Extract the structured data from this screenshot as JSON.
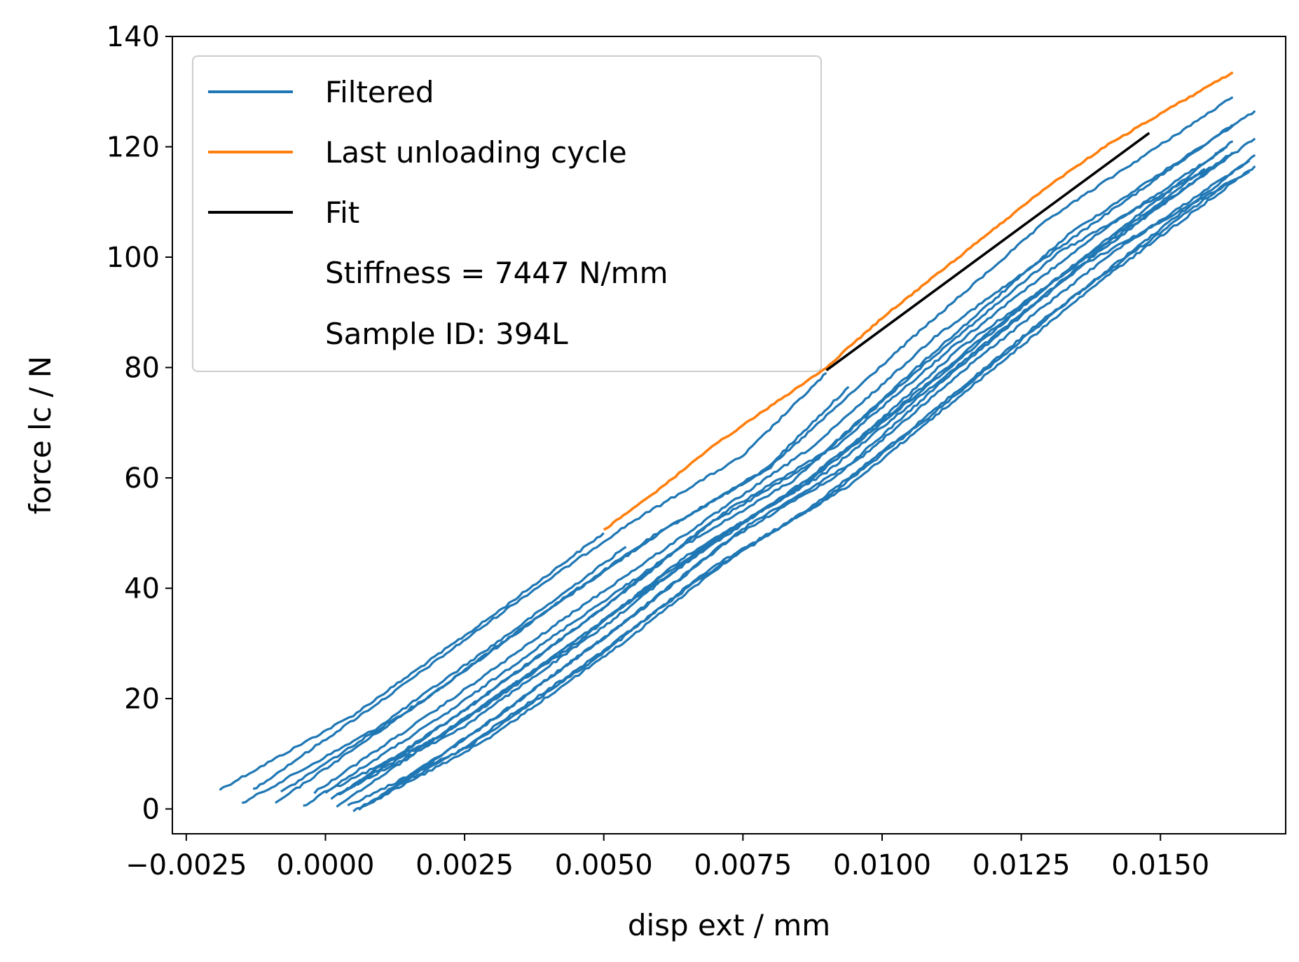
{
  "chart_data": {
    "type": "line",
    "title": "",
    "xlabel": "disp ext / mm",
    "ylabel": "force lc / N",
    "xlim": [
      -0.00275,
      0.01725
    ],
    "ylim": [
      -4.5,
      140
    ],
    "xticks": [
      -0.0025,
      0.0,
      0.0025,
      0.005,
      0.0075,
      0.01,
      0.0125,
      0.015
    ],
    "xtick_labels": [
      "−0.0025",
      "0.0000",
      "0.0025",
      "0.0050",
      "0.0075",
      "0.0100",
      "0.0125",
      "0.0150"
    ],
    "yticks": [
      0,
      20,
      40,
      60,
      80,
      100,
      120,
      140
    ],
    "ytick_labels": [
      "0",
      "20",
      "40",
      "60",
      "80",
      "100",
      "120",
      "140"
    ],
    "grid": false,
    "legend": {
      "placement": "upper-left",
      "entries": [
        {
          "label": "Filtered",
          "color": "#1f77b4",
          "marker": "line"
        },
        {
          "label": "Last unloading cycle",
          "color": "#ff7f0e",
          "marker": "line"
        },
        {
          "label": "Fit",
          "color": "#000000",
          "marker": "line"
        },
        {
          "label": "Stiffness = 7447 N/mm",
          "color": "",
          "marker": "none"
        },
        {
          "label": "Sample ID: 394L",
          "color": "",
          "marker": "none"
        }
      ]
    },
    "series": [
      {
        "name": "Filtered",
        "color": "#1f77b4",
        "curves": [
          [
            [
              -0.0019,
              3.5
            ],
            [
              0.0005,
              17
            ],
            [
              0.003,
              35
            ],
            [
              0.005,
              50
            ]
          ],
          [
            [
              -0.0013,
              3.5
            ],
            [
              0.0012,
              21
            ],
            [
              0.0035,
              38
            ],
            [
              0.0055,
              52
            ],
            [
              0.0075,
              64
            ],
            [
              0.009,
              79
            ]
          ],
          [
            [
              -0.0008,
              3.0
            ],
            [
              0.0018,
              20
            ],
            [
              0.004,
              36
            ],
            [
              0.006,
              50
            ],
            [
              0.008,
              62
            ],
            [
              0.0105,
              85
            ],
            [
              0.013,
              107
            ],
            [
              0.0163,
              129
            ]
          ],
          [
            [
              -0.0002,
              3.0
            ],
            [
              0.002,
              18
            ],
            [
              0.0045,
              36
            ],
            [
              0.0065,
              50
            ],
            [
              0.0088,
              66
            ],
            [
              0.011,
              86
            ],
            [
              0.0135,
              104
            ],
            [
              0.0163,
              124
            ]
          ],
          [
            [
              0.0,
              3.0
            ],
            [
              0.0022,
              14
            ],
            [
              0.0045,
              30
            ],
            [
              0.0065,
              46
            ],
            [
              0.0085,
              58
            ],
            [
              0.0105,
              74
            ],
            [
              0.013,
              95
            ],
            [
              0.0163,
              121
            ]
          ],
          [
            [
              0.0002,
              2.5
            ],
            [
              0.0025,
              15
            ],
            [
              0.005,
              33
            ],
            [
              0.007,
              49
            ],
            [
              0.009,
              61
            ],
            [
              0.0112,
              79
            ],
            [
              0.0135,
              98
            ],
            [
              0.0163,
              119
            ]
          ],
          [
            [
              0.0003,
              3.0
            ],
            [
              0.0025,
              18
            ],
            [
              0.0048,
              35
            ],
            [
              0.0068,
              51
            ],
            [
              0.0088,
              63
            ],
            [
              0.0108,
              81
            ],
            [
              0.0132,
              101
            ],
            [
              0.0162,
              118
            ]
          ],
          [
            [
              0.0005,
              4.0
            ],
            [
              0.0028,
              20
            ],
            [
              0.0052,
              38
            ],
            [
              0.0072,
              54
            ],
            [
              0.0092,
              66
            ],
            [
              0.0113,
              84
            ],
            [
              0.0137,
              103
            ],
            [
              0.0162,
              120
            ]
          ],
          [
            [
              0.0001,
              2.0
            ],
            [
              0.002,
              13
            ],
            [
              0.0043,
              29
            ],
            [
              0.0063,
              44
            ],
            [
              0.0083,
              57
            ],
            [
              0.0102,
              72
            ],
            [
              0.0126,
              92
            ],
            [
              0.0158,
              116
            ]
          ]
        ]
      },
      {
        "name": "Last unloading cycle",
        "color": "#ff7f0e",
        "points": [
          [
            0.005,
            50.5
          ],
          [
            0.006,
            58
          ],
          [
            0.007,
            66
          ],
          [
            0.008,
            73
          ],
          [
            0.009,
            80
          ],
          [
            0.01,
            89
          ],
          [
            0.011,
            97
          ],
          [
            0.012,
            105
          ],
          [
            0.013,
            113
          ],
          [
            0.014,
            120
          ],
          [
            0.015,
            126
          ],
          [
            0.0163,
            133.5
          ]
        ]
      },
      {
        "name": "Fit",
        "color": "#000000",
        "points": [
          [
            0.009,
            79.5
          ],
          [
            0.0148,
            122.5
          ]
        ]
      }
    ]
  }
}
